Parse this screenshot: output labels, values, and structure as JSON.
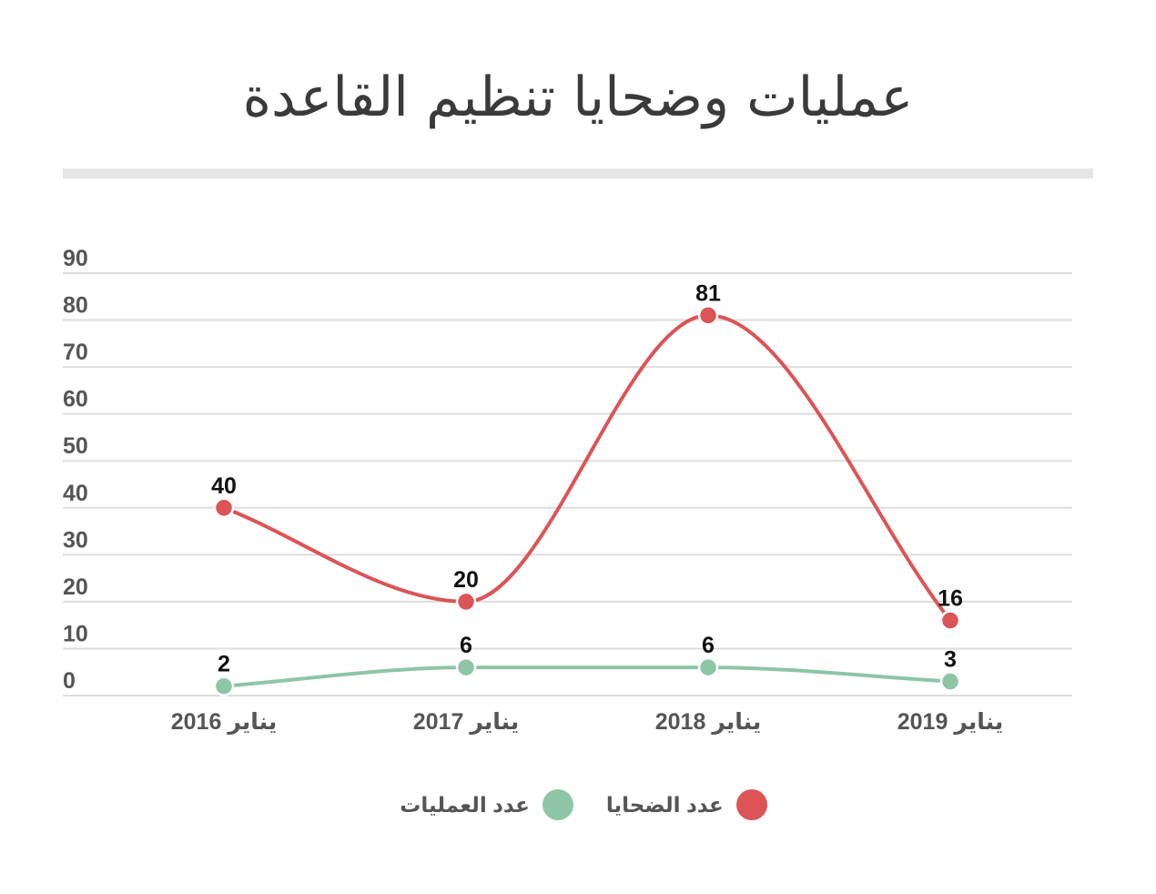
{
  "chart_data": {
    "type": "line",
    "title": "عمليات وضحايا تنظيم القاعدة",
    "categories": [
      "يناير 2016",
      "يناير 2017",
      "يناير 2018",
      "يناير 2019"
    ],
    "series": [
      {
        "name": "عدد الضحايا",
        "values": [
          40,
          20,
          81,
          16
        ],
        "color": "#dc5456"
      },
      {
        "name": "عدد العمليات",
        "values": [
          2,
          6,
          6,
          3
        ],
        "color": "#8ec5a6"
      }
    ],
    "ylim": [
      0,
      90
    ],
    "yticks": [
      0,
      10,
      20,
      30,
      40,
      50,
      60,
      70,
      80,
      90
    ],
    "xlabel": "",
    "ylabel": "",
    "grid": true,
    "smooth": true,
    "data_labels": true,
    "legend_position": "bottom"
  },
  "colors": {
    "title_rule": "#e6e6e6",
    "grid": "#dddddd",
    "axis_text": "#555555",
    "label_text": "#111111"
  }
}
